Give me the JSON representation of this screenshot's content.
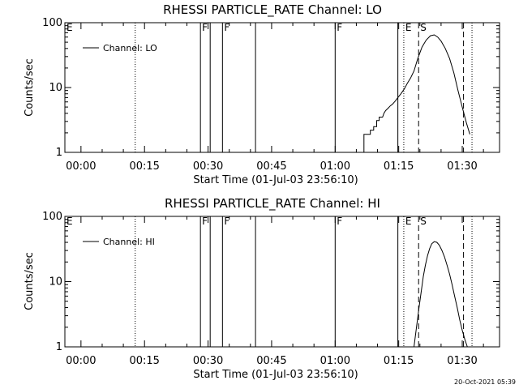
{
  "timestamp": "20-Oct-2021 05:39",
  "chart_data": [
    {
      "type": "line",
      "title": "RHESSI PARTICLE_RATE Channel: LO",
      "xlabel": "Start Time (01-Jul-03 23:56:10)",
      "ylabel": "Counts/sec",
      "legend": "Channel: LO",
      "legend_position": "top-left",
      "y_scale": "log",
      "xlim": [
        -3.8,
        98.8
      ],
      "ylim": [
        1,
        100
      ],
      "x_ticks": [
        {
          "x": 0,
          "label": "00:00"
        },
        {
          "x": 15,
          "label": "00:15"
        },
        {
          "x": 30,
          "label": "00:30"
        },
        {
          "x": 45,
          "label": "00:45"
        },
        {
          "x": 60,
          "label": "01:00"
        },
        {
          "x": 75,
          "label": "01:15"
        },
        {
          "x": 90,
          "label": "01:30"
        }
      ],
      "y_ticks": [
        {
          "y": 1,
          "label": "1"
        },
        {
          "y": 10,
          "label": "10"
        },
        {
          "y": 100,
          "label": "100"
        }
      ],
      "markers": [
        {
          "x": -3.8,
          "style": "solid",
          "label": "E"
        },
        {
          "x": 12.8,
          "style": "dotted",
          "label": ""
        },
        {
          "x": 28.2,
          "style": "solid",
          "label": "F"
        },
        {
          "x": 30.5,
          "style": "solid",
          "label": ""
        },
        {
          "x": 33.4,
          "style": "solid",
          "label": "F"
        },
        {
          "x": 41.2,
          "style": "solid",
          "label": ""
        },
        {
          "x": 60.0,
          "style": "solid",
          "label": "F"
        },
        {
          "x": 74.8,
          "style": "solid",
          "label": ""
        },
        {
          "x": 76.2,
          "style": "dotted",
          "label": "E"
        },
        {
          "x": 79.7,
          "style": "dashed",
          "label": "S"
        },
        {
          "x": 90.3,
          "style": "dashed",
          "label": ""
        },
        {
          "x": 92.3,
          "style": "dotted",
          "label": ""
        }
      ],
      "x": [
        66.8,
        66.8,
        68.3,
        68.3,
        69.1,
        69.1,
        69.8,
        69.8,
        70.4,
        70.4,
        71.2,
        71.5,
        71.9,
        72.5,
        73.0,
        73.6,
        74.2,
        74.8,
        75.5,
        76.3,
        77.0,
        77.8,
        78.6,
        79.5,
        80.5,
        81.5,
        82.5,
        83.4,
        84.2,
        85.0,
        86.0,
        87.0,
        88.0,
        89.0,
        90.0,
        91.0,
        91.8
      ],
      "y": [
        1.0,
        1.9,
        1.9,
        2.2,
        2.2,
        2.5,
        2.5,
        3.1,
        3.1,
        3.5,
        3.5,
        4.0,
        4.4,
        4.8,
        5.2,
        5.6,
        6.2,
        7.0,
        8.0,
        9.5,
        11.5,
        14.0,
        18.0,
        28.0,
        42.0,
        54.0,
        63.0,
        65.0,
        60.0,
        52.0,
        40.0,
        28.0,
        17.0,
        9.0,
        5.0,
        2.8,
        1.9
      ]
    },
    {
      "type": "line",
      "title": "RHESSI PARTICLE_RATE Channel: HI",
      "xlabel": "Start Time (01-Jul-03 23:56:10)",
      "ylabel": "Counts/sec",
      "legend": "Channel: HI",
      "legend_position": "top-left",
      "y_scale": "log",
      "xlim": [
        -3.8,
        98.8
      ],
      "ylim": [
        1,
        100
      ],
      "x_ticks": [
        {
          "x": 0,
          "label": "00:00"
        },
        {
          "x": 15,
          "label": "00:15"
        },
        {
          "x": 30,
          "label": "00:30"
        },
        {
          "x": 45,
          "label": "00:45"
        },
        {
          "x": 60,
          "label": "01:00"
        },
        {
          "x": 75,
          "label": "01:15"
        },
        {
          "x": 90,
          "label": "01:30"
        }
      ],
      "y_ticks": [
        {
          "y": 1,
          "label": "1"
        },
        {
          "y": 10,
          "label": "10"
        },
        {
          "y": 100,
          "label": "100"
        }
      ],
      "markers": [
        {
          "x": -3.8,
          "style": "solid",
          "label": "E"
        },
        {
          "x": 12.8,
          "style": "dotted",
          "label": ""
        },
        {
          "x": 28.2,
          "style": "solid",
          "label": "F"
        },
        {
          "x": 30.5,
          "style": "solid",
          "label": ""
        },
        {
          "x": 33.4,
          "style": "solid",
          "label": "F"
        },
        {
          "x": 41.2,
          "style": "solid",
          "label": ""
        },
        {
          "x": 60.0,
          "style": "solid",
          "label": "F"
        },
        {
          "x": 74.8,
          "style": "solid",
          "label": ""
        },
        {
          "x": 76.2,
          "style": "dotted",
          "label": "E"
        },
        {
          "x": 79.7,
          "style": "dashed",
          "label": "S"
        },
        {
          "x": 90.3,
          "style": "dashed",
          "label": ""
        },
        {
          "x": 92.3,
          "style": "dotted",
          "label": ""
        }
      ],
      "x": [
        78.6,
        79.2,
        79.8,
        80.3,
        80.8,
        81.3,
        81.8,
        82.3,
        82.8,
        83.4,
        84.0,
        84.6,
        85.2,
        85.8,
        86.4,
        87.0,
        87.6,
        88.2,
        88.8,
        89.4,
        90.0,
        90.6,
        91.2
      ],
      "y": [
        1.0,
        2.0,
        4.0,
        7.0,
        12.0,
        18.0,
        25.0,
        32.0,
        38.0,
        41.0,
        40.0,
        36.0,
        30.0,
        24.0,
        18.0,
        13.0,
        9.0,
        6.0,
        4.0,
        2.6,
        1.8,
        1.3,
        1.0
      ]
    }
  ]
}
